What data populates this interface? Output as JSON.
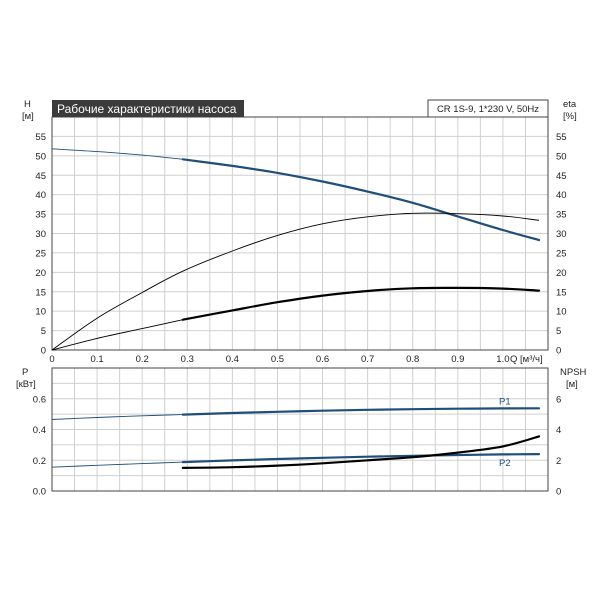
{
  "chart_data": [
    {
      "type": "line",
      "title": "Рабочие характеристики насоса",
      "subtitle": "CR 1S-9, 1*230 V, 50Hz",
      "xlabel": "Q [м³/ч]",
      "ylabel_left": "H",
      "ylabel_left_unit": "[м]",
      "ylabel_right": "eta",
      "ylabel_right_unit": "[%]",
      "xlim": [
        0,
        1.1
      ],
      "ylim_left": [
        0,
        60
      ],
      "ylim_right": [
        0,
        60
      ],
      "x_ticks": [
        "0",
        "0.1",
        "0.2",
        "0.3",
        "0.4",
        "0.5",
        "0.6",
        "0.7",
        "0.8",
        "0.9",
        "1.0"
      ],
      "y_ticks": [
        "0",
        "5",
        "10",
        "15",
        "20",
        "25",
        "30",
        "35",
        "40",
        "45",
        "50",
        "55"
      ],
      "grid": true,
      "colors": {
        "head": "#1f4e79",
        "efficiency": "#000000"
      },
      "series": [
        {
          "key": "head",
          "x": [
            0.0,
            0.1,
            0.2,
            0.29,
            0.4,
            0.5,
            0.6,
            0.7,
            0.8,
            0.9,
            1.0,
            1.08
          ],
          "values": [
            51.8,
            51.1,
            50.2,
            49.1,
            47.4,
            45.6,
            43.4,
            40.8,
            37.9,
            34.4,
            30.9,
            28.3
          ],
          "bold_from": 0.29
        },
        {
          "key": "efficiency",
          "x": [
            0.0,
            0.1,
            0.2,
            0.29,
            0.4,
            0.5,
            0.6,
            0.7,
            0.8,
            0.9,
            1.0,
            1.08
          ],
          "values": [
            0.0,
            8.2,
            14.8,
            20.3,
            25.5,
            29.5,
            32.5,
            34.3,
            35.2,
            35.1,
            34.5,
            33.4
          ],
          "bold_from": 1.2
        },
        {
          "key": "efficiency-lower",
          "x": [
            0.0,
            0.1,
            0.2,
            0.29,
            0.4,
            0.5,
            0.6,
            0.7,
            0.8,
            0.9,
            1.0,
            1.08
          ],
          "values": [
            0.0,
            3.0,
            5.5,
            7.8,
            10.2,
            12.3,
            14.0,
            15.2,
            15.9,
            16.0,
            15.8,
            15.3
          ],
          "bold_from": 0.29
        }
      ]
    },
    {
      "type": "line",
      "ylabel_left": "P",
      "ylabel_left_unit": "[кВт]",
      "ylabel_right": "NPSH",
      "ylabel_right_unit": "[м]",
      "xlim": [
        0,
        1.1
      ],
      "ylim_left": [
        0,
        0.8
      ],
      "ylim_right": [
        0,
        8
      ],
      "y_ticks_left": [
        "0.0",
        "0.2",
        "0.4",
        "0.6"
      ],
      "y_ticks_right": [
        "0",
        "2",
        "4",
        "6"
      ],
      "grid": true,
      "series": [
        {
          "name": "P1",
          "color": "#1f4e79",
          "x": [
            0.0,
            0.1,
            0.2,
            0.29,
            0.4,
            0.5,
            0.6,
            0.7,
            0.8,
            0.9,
            1.0,
            1.08
          ],
          "values": [
            0.465,
            0.478,
            0.489,
            0.497,
            0.507,
            0.515,
            0.522,
            0.528,
            0.532,
            0.535,
            0.537,
            0.538
          ],
          "bold_from": 0.29
        },
        {
          "name": "P2",
          "color": "#1f4e79",
          "x": [
            0.0,
            0.1,
            0.2,
            0.29,
            0.4,
            0.5,
            0.6,
            0.7,
            0.8,
            0.9,
            1.0,
            1.08
          ],
          "values": [
            0.155,
            0.167,
            0.178,
            0.188,
            0.199,
            0.208,
            0.216,
            0.223,
            0.229,
            0.234,
            0.238,
            0.24
          ],
          "bold_from": 0.29
        },
        {
          "key": "npsh",
          "color": "#000000",
          "axis": "right",
          "x": [
            0.29,
            0.4,
            0.5,
            0.6,
            0.7,
            0.8,
            0.9,
            1.0,
            1.08
          ],
          "values": [
            1.5,
            1.55,
            1.65,
            1.8,
            2.0,
            2.2,
            2.5,
            2.9,
            3.55
          ],
          "bold_from": 0.29
        }
      ]
    }
  ]
}
